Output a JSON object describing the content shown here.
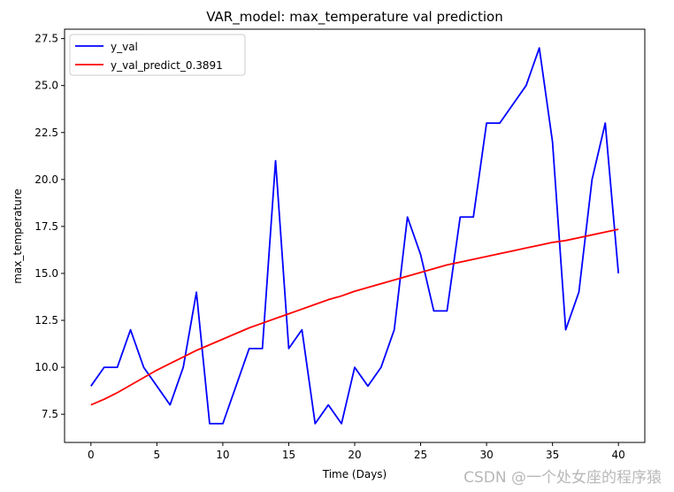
{
  "chart_data": {
    "type": "line",
    "title": "VAR_model: max_temperature val prediction",
    "xlabel": "Time (Days)",
    "ylabel": "max_temperature",
    "xlim": [
      -2,
      42
    ],
    "ylim": [
      6.0,
      28.0
    ],
    "xticks": [
      0,
      5,
      10,
      15,
      20,
      25,
      30,
      35,
      40
    ],
    "yticks": [
      7.5,
      10.0,
      12.5,
      15.0,
      17.5,
      20.0,
      22.5,
      25.0,
      27.5
    ],
    "ytick_labels": [
      "7.5",
      "10.0",
      "12.5",
      "15.0",
      "17.5",
      "20.0",
      "22.5",
      "25.0",
      "27.5"
    ],
    "legend_position": "upper-left",
    "grid": false,
    "series": [
      {
        "name": "y_val",
        "color": "#0000ff",
        "x": [
          0,
          1,
          2,
          3,
          4,
          5,
          6,
          7,
          8,
          9,
          10,
          11,
          12,
          13,
          14,
          15,
          16,
          17,
          18,
          19,
          20,
          21,
          22,
          23,
          24,
          25,
          26,
          27,
          28,
          29,
          30,
          31,
          32,
          33,
          34,
          35,
          36,
          37,
          38,
          39,
          40
        ],
        "values": [
          9,
          10,
          10,
          12,
          10,
          9,
          8,
          10,
          14,
          7,
          7,
          9,
          11,
          11,
          21,
          11,
          12,
          7,
          8,
          7,
          10,
          9,
          10,
          12,
          18,
          16,
          13,
          13,
          18,
          18,
          23,
          23,
          24,
          25,
          27,
          22,
          12,
          14,
          20,
          23,
          15
        ]
      },
      {
        "name": "y_val_predict_0.3891",
        "color": "#ff0000",
        "x": [
          0,
          1,
          2,
          3,
          4,
          5,
          6,
          7,
          8,
          9,
          10,
          11,
          12,
          13,
          14,
          15,
          16,
          17,
          18,
          19,
          20,
          21,
          22,
          23,
          24,
          25,
          26,
          27,
          28,
          29,
          30,
          31,
          32,
          33,
          34,
          35,
          36,
          37,
          38,
          39,
          40
        ],
        "values": [
          8.0,
          8.3,
          8.65,
          9.05,
          9.45,
          9.85,
          10.2,
          10.55,
          10.9,
          11.2,
          11.5,
          11.8,
          12.1,
          12.35,
          12.6,
          12.85,
          13.1,
          13.35,
          13.6,
          13.8,
          14.05,
          14.25,
          14.45,
          14.65,
          14.85,
          15.05,
          15.25,
          15.45,
          15.6,
          15.75,
          15.9,
          16.05,
          16.2,
          16.35,
          16.5,
          16.65,
          16.75,
          16.9,
          17.05,
          17.2,
          17.35
        ]
      }
    ]
  },
  "watermark": "CSDN @一个处女座的程序猿"
}
